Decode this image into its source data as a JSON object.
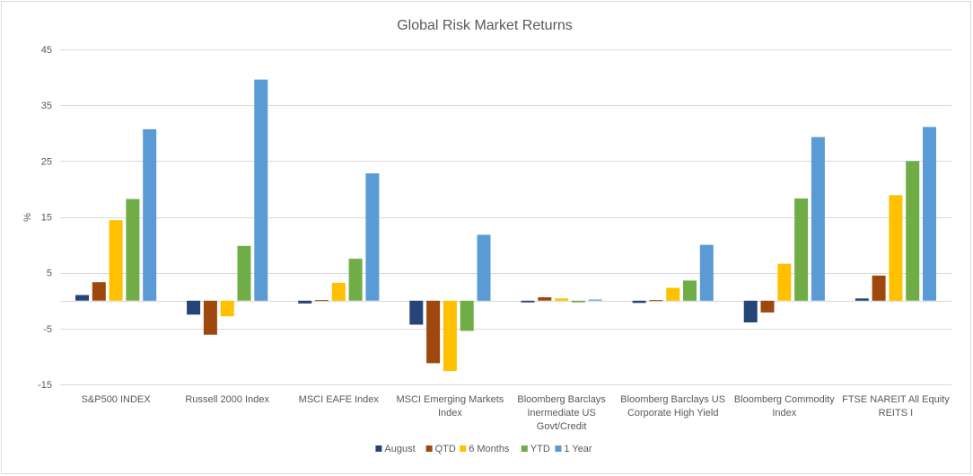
{
  "chart_data": {
    "type": "bar",
    "title": "Global Risk Market Returns",
    "ylabel": "%",
    "ylim": [
      -15,
      45
    ],
    "yticks": [
      45,
      35,
      25,
      15,
      5,
      -5,
      -15
    ],
    "grid": true,
    "legend_position": "bottom",
    "categories": [
      [
        "S&P500 INDEX"
      ],
      [
        "Russell 2000 Index"
      ],
      [
        "MSCI EAFE Index"
      ],
      [
        "MSCI Emerging Markets",
        "Index"
      ],
      [
        "Bloomberg Barclays",
        "Inermediate US",
        "Govt/Credit"
      ],
      [
        "Bloomberg Barclays US",
        "Corporate High Yield"
      ],
      [
        "Bloomberg Commodity",
        "Index"
      ],
      [
        "FTSE NAREIT All Equity",
        "REITS I"
      ]
    ],
    "series": [
      {
        "name": "August",
        "color": "#264478",
        "values": [
          1.0,
          -2.5,
          -0.5,
          -4.3,
          -0.3,
          -0.4,
          -3.9,
          0.4
        ]
      },
      {
        "name": "QTD",
        "color": "#9e480e",
        "values": [
          3.3,
          -6.1,
          0.1,
          -11.2,
          0.6,
          0.1,
          -2.1,
          4.5
        ]
      },
      {
        "name": "6 Months",
        "color": "#ffc000",
        "values": [
          14.4,
          -2.8,
          3.2,
          -12.6,
          0.4,
          2.3,
          6.6,
          18.9
        ]
      },
      {
        "name": "YTD",
        "color": "#70ad47",
        "values": [
          18.2,
          9.8,
          7.5,
          -5.4,
          -0.3,
          3.6,
          18.3,
          25.0
        ]
      },
      {
        "name": "1 Year",
        "color": "#5b9bd5",
        "values": [
          30.7,
          39.6,
          22.8,
          11.8,
          0.2,
          10.0,
          29.3,
          31.1
        ]
      }
    ]
  }
}
